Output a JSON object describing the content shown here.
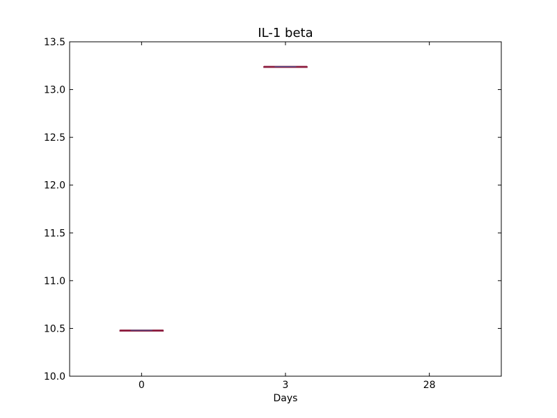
{
  "chart_data": {
    "type": "box",
    "title": "IL-1 beta",
    "xlabel": "Days",
    "ylabel": "",
    "categories": [
      "0",
      "3",
      "28"
    ],
    "ylim": [
      10.0,
      13.5
    ],
    "yticks": [
      "10.0",
      "10.5",
      "11.0",
      "11.5",
      "12.0",
      "12.5",
      "13.0",
      "13.5"
    ],
    "grid": false,
    "series": [
      {
        "color": "#8b1a3c",
        "boxes": [
          {
            "category": "0",
            "min": 10.48,
            "q1": 10.48,
            "median": 10.48,
            "q3": 10.48,
            "max": 10.48
          },
          {
            "category": "3",
            "min": 13.24,
            "q1": 13.24,
            "median": 13.24,
            "q3": 13.24,
            "max": 13.24
          }
        ]
      }
    ]
  }
}
